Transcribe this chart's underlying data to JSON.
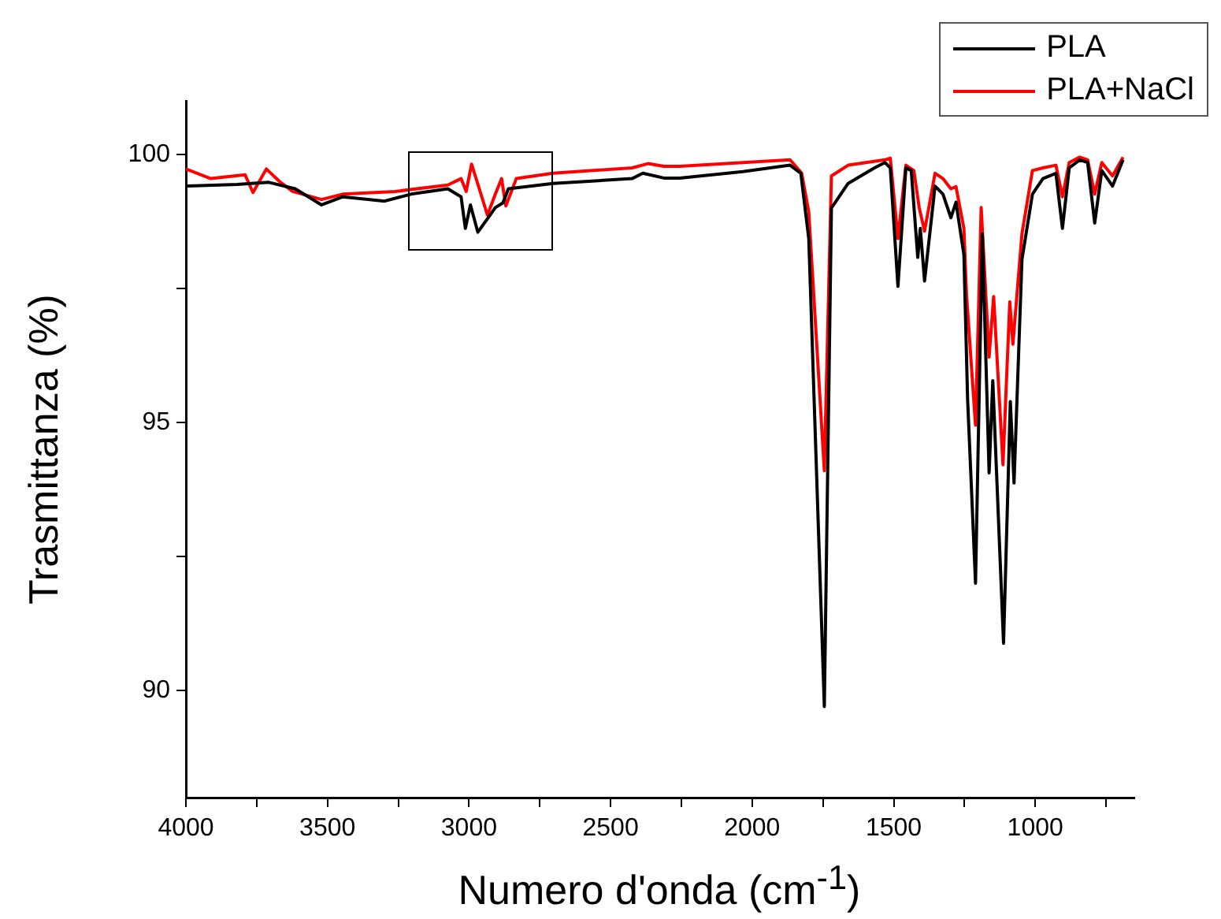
{
  "chart_data": {
    "type": "line",
    "xlabel": "Numero d'onda (cm$^{-1}$)",
    "ylabel": "Trasmittanza (%)",
    "xlim": [
      4000,
      650
    ],
    "ylim": [
      88,
      101
    ],
    "xticks": [
      4000,
      {
        "value": 3750,
        "label": null
      },
      3500,
      {
        "value": 3250,
        "label": null
      },
      3000,
      {
        "value": 2750,
        "label": null
      },
      2500,
      {
        "value": 2250,
        "label": null
      },
      2000,
      {
        "value": 1750,
        "label": null
      },
      1500,
      {
        "value": 1250,
        "label": null
      },
      1000,
      {
        "value": 750,
        "label": null
      }
    ],
    "yticks": [
      90,
      {
        "value": 92.5,
        "label": null
      },
      95,
      {
        "value": 97.5,
        "label": null
      },
      100
    ],
    "grid": false,
    "legend": "top right",
    "series": [
      {
        "name": "PLA",
        "color": "#000000",
        "x": [
          4000,
          3819,
          3707,
          3614,
          3521,
          3446,
          3298,
          3205,
          3075,
          3028,
          3013,
          2995,
          2969,
          2935,
          2907,
          2880,
          2861,
          2703,
          2424,
          2386,
          2312,
          2256,
          2033,
          1866,
          1828,
          1800,
          1745,
          1720,
          1661,
          1568,
          1531,
          1512,
          1485,
          1457,
          1438,
          1415,
          1406,
          1391,
          1354,
          1326,
          1298,
          1280,
          1252,
          1239,
          1211,
          1187,
          1163,
          1150,
          1112,
          1088,
          1075,
          1047,
          1010,
          973,
          927,
          904,
          880,
          843,
          815,
          790,
          765,
          727,
          690
        ],
        "values": [
          99.41,
          99.44,
          99.48,
          99.36,
          99.06,
          99.21,
          99.13,
          99.26,
          99.36,
          99.21,
          98.62,
          99.06,
          98.55,
          98.8,
          99.01,
          99.1,
          99.36,
          99.46,
          99.55,
          99.65,
          99.56,
          99.56,
          99.68,
          99.8,
          99.65,
          98.43,
          89.7,
          99.0,
          99.46,
          99.75,
          99.85,
          99.75,
          97.54,
          99.75,
          99.7,
          98.08,
          98.62,
          97.64,
          99.41,
          99.26,
          98.82,
          99.11,
          98.13,
          95.44,
          92.0,
          98.52,
          94.06,
          95.78,
          90.88,
          95.39,
          93.87,
          98.04,
          99.26,
          99.55,
          99.65,
          98.62,
          99.75,
          99.9,
          99.85,
          98.72,
          99.7,
          99.41,
          99.9
        ]
      },
      {
        "name": "PLA+NaCl",
        "color": "#ff0000",
        "x": [
          4000,
          3912,
          3791,
          3763,
          3716,
          3670,
          3623,
          3521,
          3446,
          3261,
          3075,
          3028,
          3010,
          2991,
          2972,
          2935,
          2907,
          2885,
          2870,
          2833,
          2703,
          2424,
          2368,
          2312,
          2256,
          2033,
          1866,
          1825,
          1800,
          1745,
          1720,
          1661,
          1531,
          1512,
          1485,
          1457,
          1429,
          1410,
          1391,
          1354,
          1326,
          1298,
          1280,
          1252,
          1243,
          1211,
          1191,
          1163,
          1147,
          1114,
          1090,
          1079,
          1047,
          1010,
          973,
          927,
          904,
          880,
          843,
          815,
          790,
          765,
          727,
          690
        ],
        "values": [
          99.73,
          99.55,
          99.62,
          99.29,
          99.73,
          99.5,
          99.31,
          99.16,
          99.26,
          99.31,
          99.43,
          99.55,
          99.31,
          99.82,
          99.5,
          98.87,
          99.26,
          99.55,
          99.04,
          99.55,
          99.65,
          99.75,
          99.83,
          99.78,
          99.78,
          99.85,
          99.9,
          99.65,
          98.93,
          94.1,
          99.6,
          99.8,
          99.9,
          99.93,
          98.43,
          99.8,
          99.7,
          99.01,
          98.57,
          99.65,
          99.55,
          99.36,
          99.4,
          98.62,
          97.4,
          94.95,
          99.01,
          96.22,
          97.35,
          94.21,
          97.25,
          96.46,
          98.52,
          99.7,
          99.75,
          99.8,
          99.21,
          99.85,
          99.95,
          99.9,
          99.26,
          99.85,
          99.6,
          99.95
        ]
      }
    ]
  }
}
